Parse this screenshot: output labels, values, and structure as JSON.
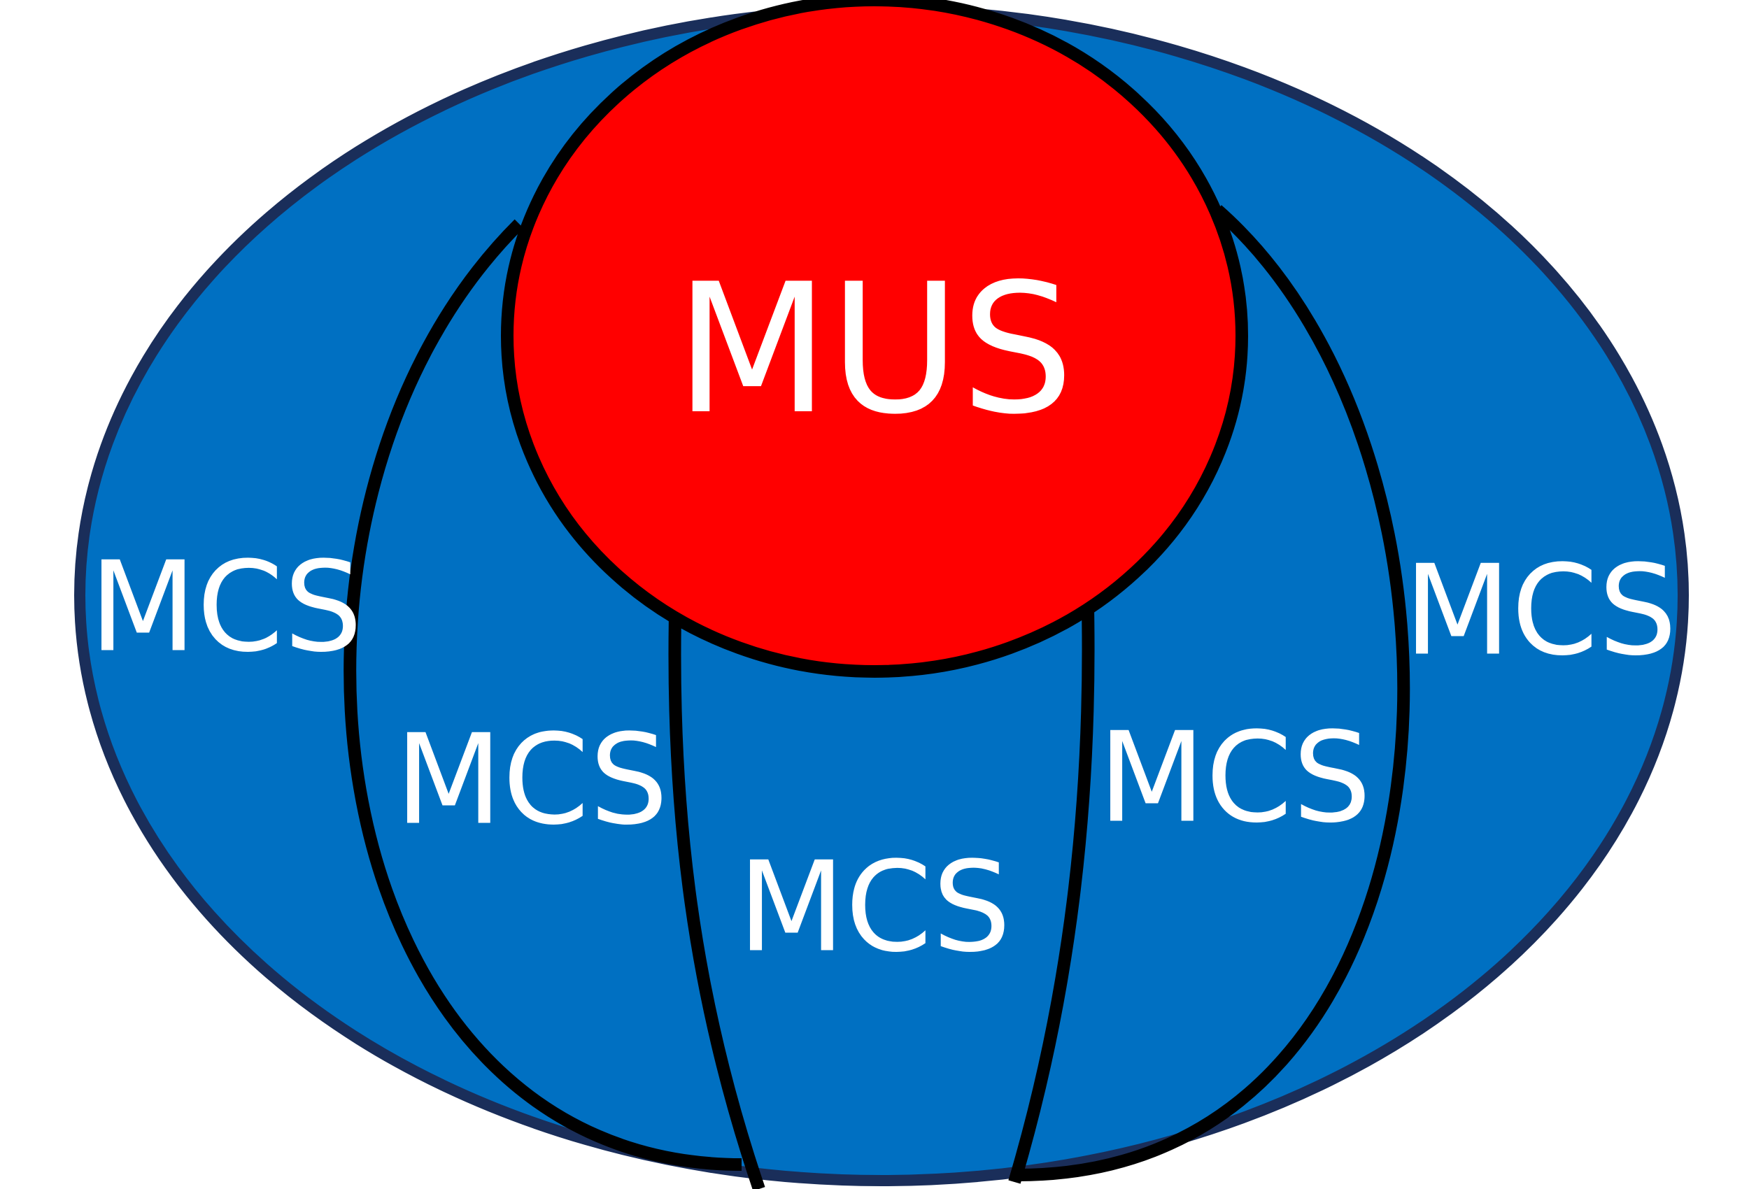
{
  "diagram": {
    "center_label": "MUS",
    "region_labels": [
      "MCS",
      "MCS",
      "MCS",
      "MCS",
      "MCS"
    ],
    "colors": {
      "outer_fill": "#0070C2",
      "outer_stroke": "#1A2E5A",
      "mus_fill": "#FF0000",
      "line": "#000000",
      "text": "#FFFFFF",
      "background": "#FFFFFF"
    }
  }
}
